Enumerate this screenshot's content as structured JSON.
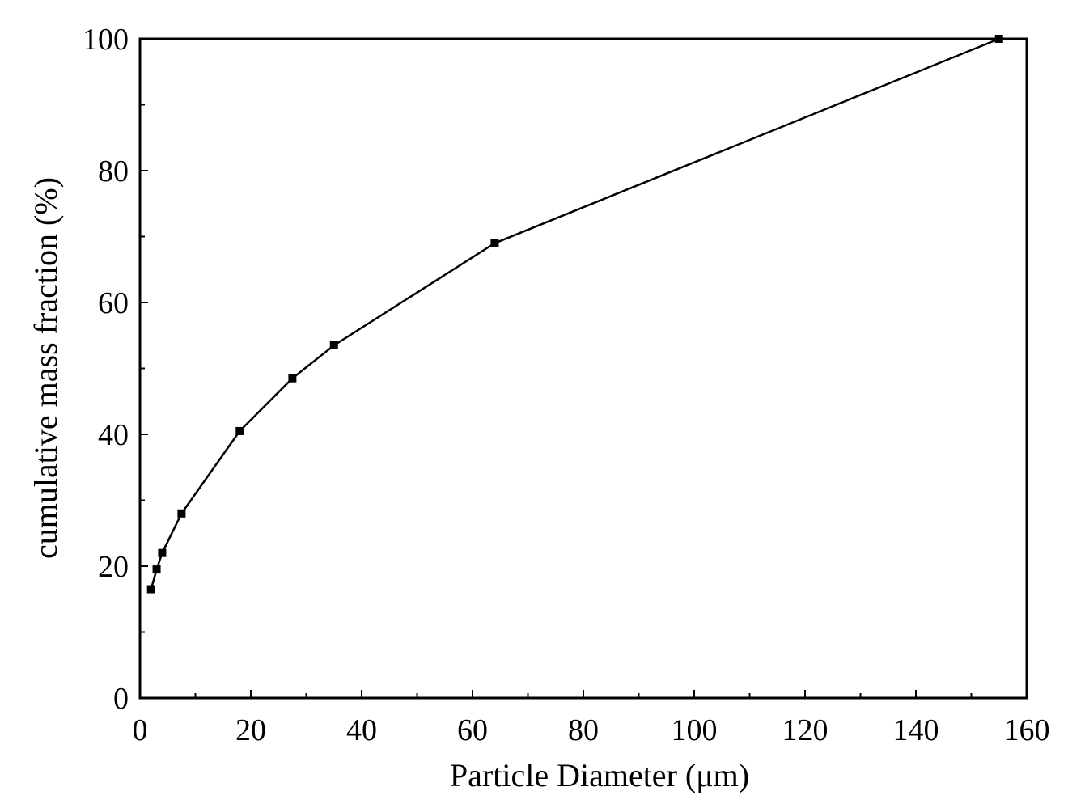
{
  "chart_data": {
    "type": "line",
    "title": "",
    "xlabel": "Particle Diameter (μm)",
    "ylabel": "cumulative mass fraction (%)",
    "xlim": [
      0,
      160
    ],
    "ylim": [
      0,
      100
    ],
    "x_ticks": [
      0,
      20,
      40,
      60,
      80,
      100,
      120,
      140,
      160
    ],
    "y_ticks": [
      0,
      20,
      40,
      60,
      80,
      100
    ],
    "grid": false,
    "series": [
      {
        "marker": "square",
        "color": "#000000",
        "x": [
          2,
          3,
          4,
          7.5,
          18,
          27.5,
          35,
          64,
          155
        ],
        "y": [
          16.5,
          19.5,
          22,
          28,
          40.5,
          48.5,
          53.5,
          69,
          100
        ]
      }
    ]
  }
}
